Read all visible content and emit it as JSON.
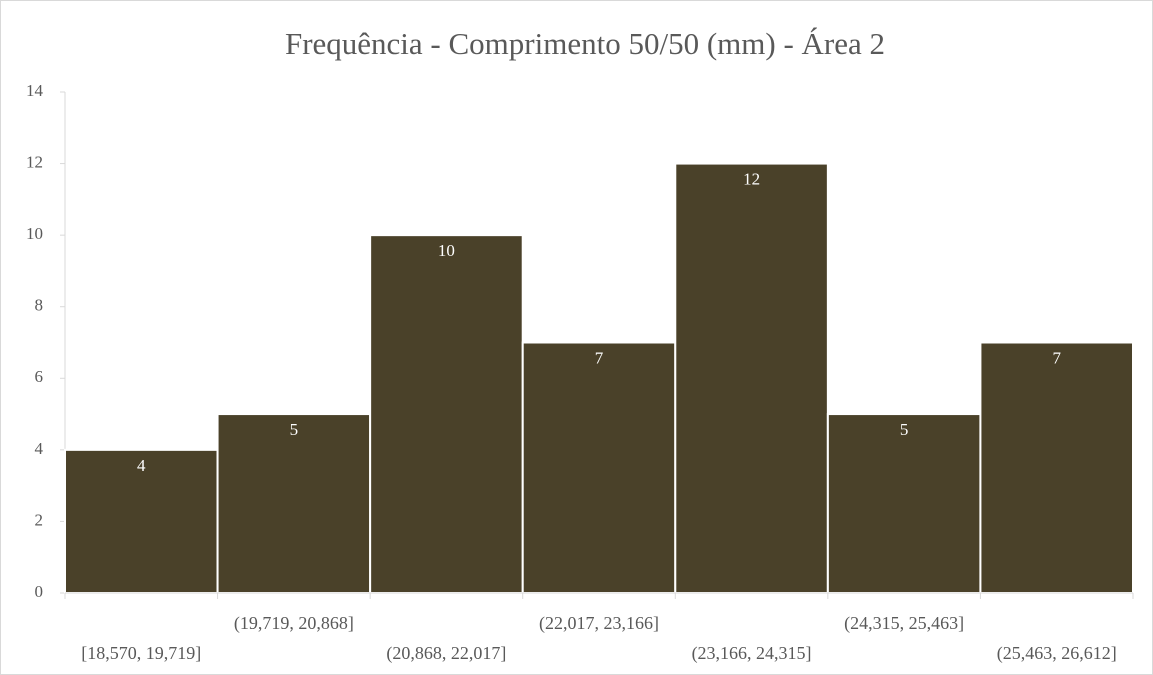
{
  "chart_data": {
    "type": "bar",
    "title": "Frequência - Comprimento 50/50 (mm) - Área 2",
    "categories": [
      "[18,570, 19,719]",
      "(19,719, 20,868]",
      "(20,868, 22,017]",
      "(22,017, 23,166]",
      "(23,166, 24,315]",
      "(24,315, 25,463]",
      "(25,463, 26,612]"
    ],
    "values": [
      4,
      5,
      10,
      7,
      12,
      5,
      7
    ],
    "color": "#4a4129",
    "ylim": [
      0,
      14
    ],
    "yticks": [
      0,
      2,
      4,
      6,
      8,
      10,
      12,
      14
    ],
    "grid": false
  }
}
